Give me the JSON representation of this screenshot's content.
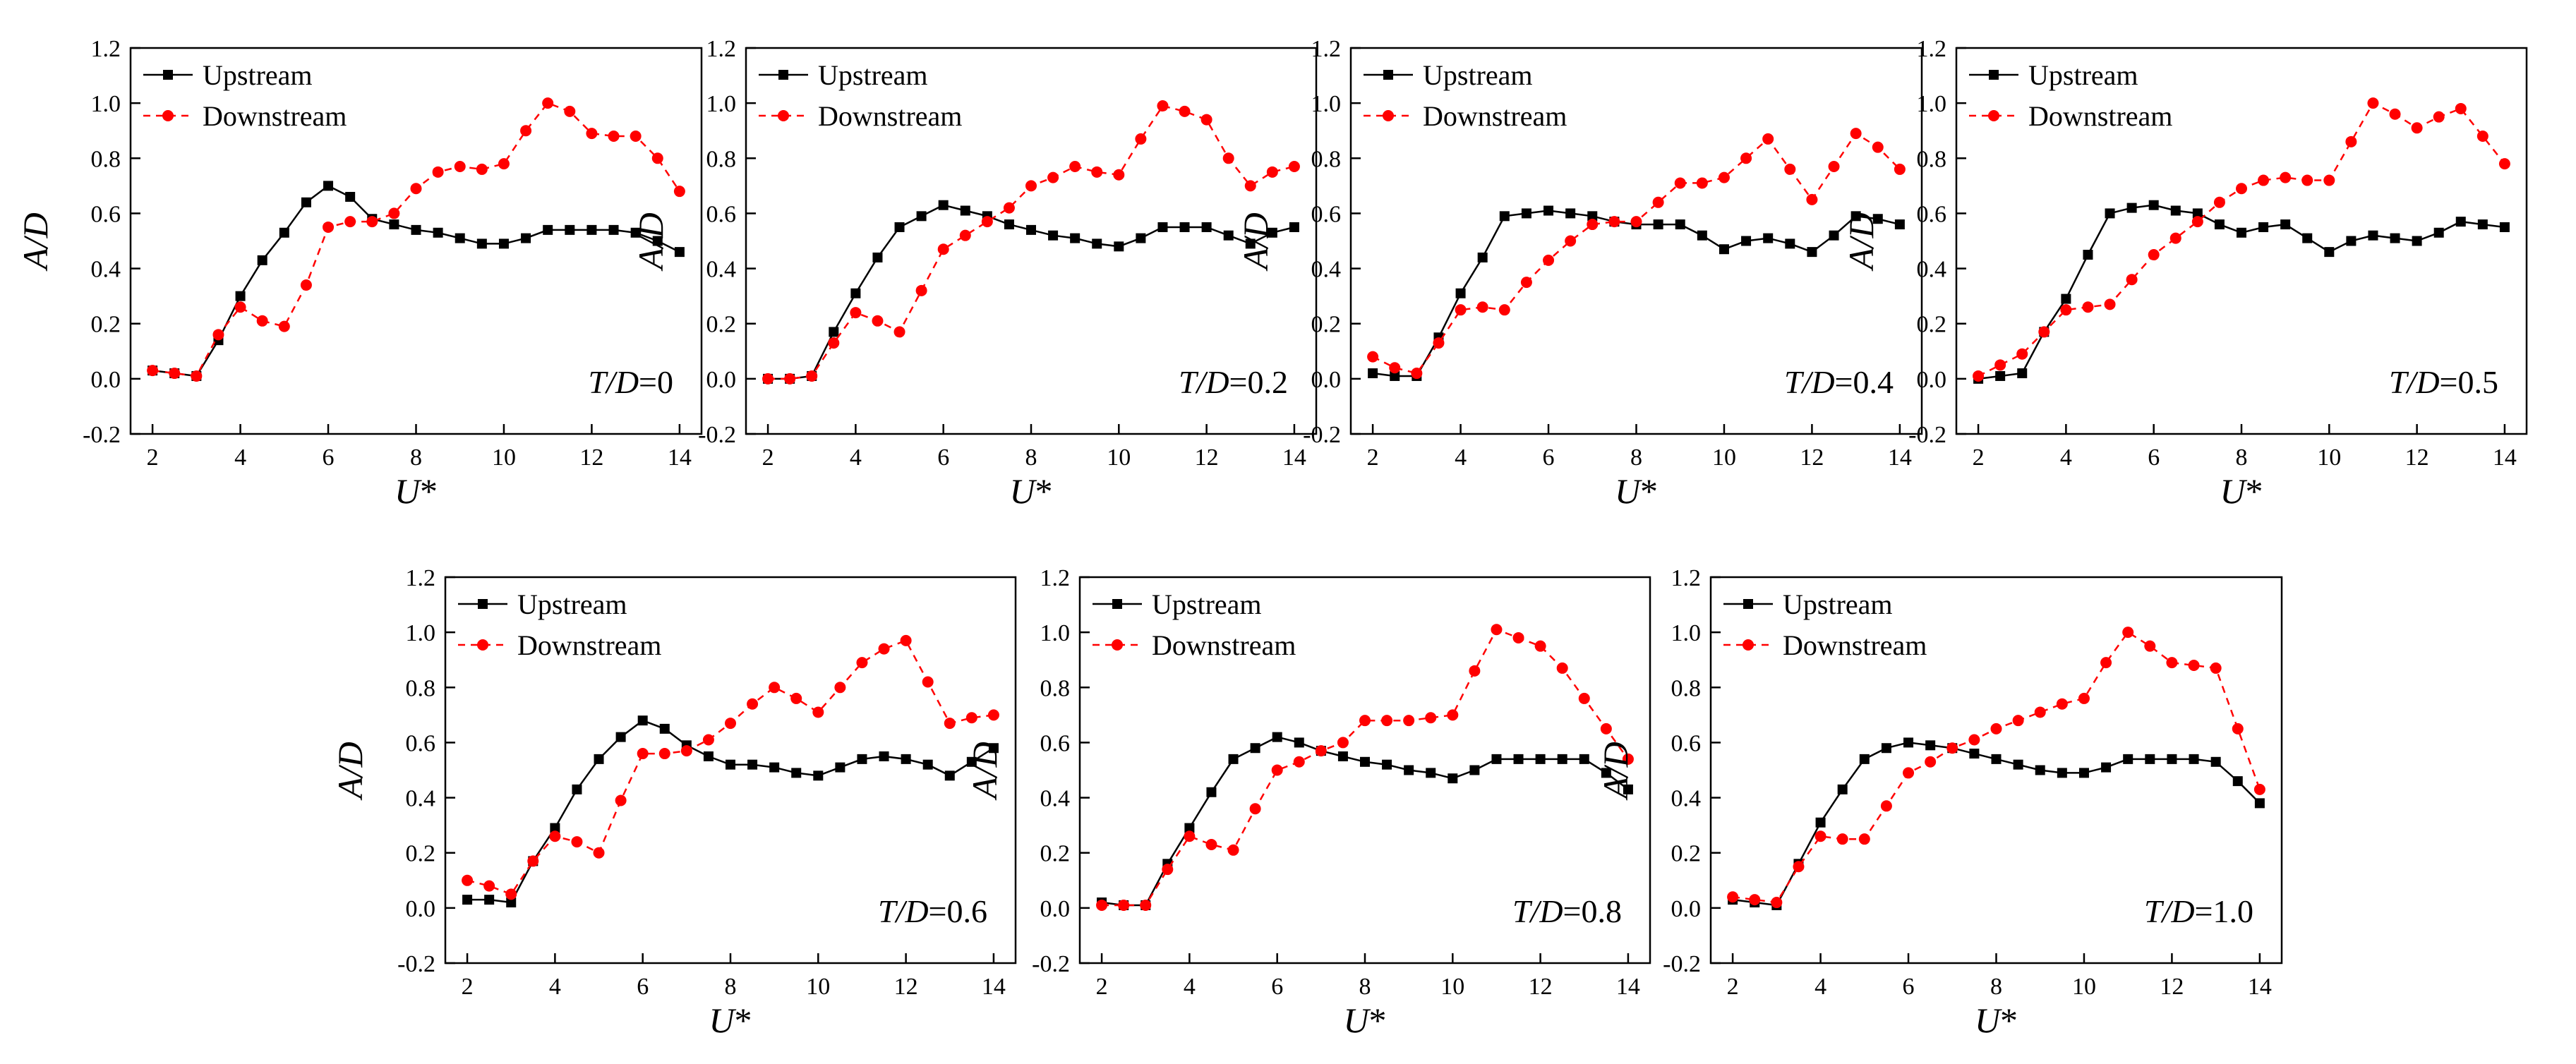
{
  "figure": {
    "axis": {
      "xlabel": "U",
      "xlabel_suffix": "*",
      "ylabel": "A/D",
      "xlim": [
        1.5,
        14.5
      ],
      "ylim": [
        -0.2,
        1.2
      ],
      "xticks": [
        2,
        4,
        6,
        8,
        10,
        12,
        14
      ],
      "yticks": [
        -0.2,
        0.0,
        0.2,
        0.4,
        0.6,
        0.8,
        1.0,
        1.2
      ],
      "xtick_labels": [
        "2",
        "4",
        "6",
        "8",
        "10",
        "12",
        "14"
      ],
      "ytick_labels": [
        "-0.2",
        "0.0",
        "0.2",
        "0.4",
        "0.6",
        "0.8",
        "1.0",
        "1.2"
      ]
    },
    "legend": {
      "upstream": "Upstream",
      "downstream": "Downstream",
      "placement": "top-left"
    },
    "colors": {
      "upstream": "#000000",
      "downstream": "#ff0000"
    }
  },
  "chart_data": [
    {
      "type": "line",
      "annotation": {
        "italic": "T/D",
        "value": "=0"
      },
      "x": [
        2,
        2.5,
        3,
        3.5,
        4,
        4.5,
        5,
        5.5,
        6,
        6.5,
        7,
        7.5,
        8,
        8.5,
        9,
        9.5,
        10,
        10.5,
        11,
        11.5,
        12,
        12.5,
        13,
        13.5,
        14
      ],
      "series": [
        {
          "name": "Upstream",
          "values": [
            0.03,
            0.02,
            0.01,
            0.14,
            0.3,
            0.43,
            0.53,
            0.64,
            0.7,
            0.66,
            0.58,
            0.56,
            0.54,
            0.53,
            0.51,
            0.49,
            0.49,
            0.51,
            0.54,
            0.54,
            0.54,
            0.54,
            0.53,
            0.5,
            0.46
          ]
        },
        {
          "name": "Downstream",
          "values": [
            0.03,
            0.02,
            0.01,
            0.16,
            0.26,
            0.21,
            0.19,
            0.34,
            0.55,
            0.57,
            0.57,
            0.6,
            0.69,
            0.75,
            0.77,
            0.76,
            0.78,
            0.9,
            1.0,
            0.97,
            0.89,
            0.88,
            0.88,
            0.8,
            0.68
          ]
        }
      ]
    },
    {
      "type": "line",
      "annotation": {
        "italic": "T/D",
        "value": "=0.2"
      },
      "x": [
        2,
        2.5,
        3,
        3.5,
        4,
        4.5,
        5,
        5.5,
        6,
        6.5,
        7,
        7.5,
        8,
        8.5,
        9,
        9.5,
        10,
        10.5,
        11,
        11.5,
        12,
        12.5,
        13,
        13.5,
        14
      ],
      "series": [
        {
          "name": "Upstream",
          "values": [
            0.0,
            0.0,
            0.01,
            0.17,
            0.31,
            0.44,
            0.55,
            0.59,
            0.63,
            0.61,
            0.59,
            0.56,
            0.54,
            0.52,
            0.51,
            0.49,
            0.48,
            0.51,
            0.55,
            0.55,
            0.55,
            0.52,
            0.49,
            0.53,
            0.55
          ]
        },
        {
          "name": "Downstream",
          "values": [
            0.0,
            0.0,
            0.01,
            0.13,
            0.24,
            0.21,
            0.17,
            0.32,
            0.47,
            0.52,
            0.57,
            0.62,
            0.7,
            0.73,
            0.77,
            0.75,
            0.74,
            0.87,
            0.99,
            0.97,
            0.94,
            0.8,
            0.7,
            0.75,
            0.77
          ]
        }
      ]
    },
    {
      "type": "line",
      "annotation": {
        "italic": "T/D",
        "value": "=0.4"
      },
      "x": [
        2,
        2.5,
        3,
        3.5,
        4,
        4.5,
        5,
        5.5,
        6,
        6.5,
        7,
        7.5,
        8,
        8.5,
        9,
        9.5,
        10,
        10.5,
        11,
        11.5,
        12,
        12.5,
        13,
        13.5,
        14
      ],
      "series": [
        {
          "name": "Upstream",
          "values": [
            0.02,
            0.01,
            0.01,
            0.15,
            0.31,
            0.44,
            0.59,
            0.6,
            0.61,
            0.6,
            0.59,
            0.57,
            0.56,
            0.56,
            0.56,
            0.52,
            0.47,
            0.5,
            0.51,
            0.49,
            0.46,
            0.52,
            0.59,
            0.58,
            0.56
          ]
        },
        {
          "name": "Downstream",
          "values": [
            0.08,
            0.04,
            0.02,
            0.13,
            0.25,
            0.26,
            0.25,
            0.35,
            0.43,
            0.5,
            0.56,
            0.57,
            0.57,
            0.64,
            0.71,
            0.71,
            0.73,
            0.8,
            0.87,
            0.76,
            0.65,
            0.77,
            0.89,
            0.84,
            0.76
          ]
        }
      ]
    },
    {
      "type": "line",
      "annotation": {
        "italic": "T/D",
        "value": "=0.5"
      },
      "x": [
        2,
        2.5,
        3,
        3.5,
        4,
        4.5,
        5,
        5.5,
        6,
        6.5,
        7,
        7.5,
        8,
        8.5,
        9,
        9.5,
        10,
        10.5,
        11,
        11.5,
        12,
        12.5,
        13,
        13.5,
        14
      ],
      "series": [
        {
          "name": "Upstream",
          "values": [
            0.0,
            0.01,
            0.02,
            0.17,
            0.29,
            0.45,
            0.6,
            0.62,
            0.63,
            0.61,
            0.6,
            0.56,
            0.53,
            0.55,
            0.56,
            0.51,
            0.46,
            0.5,
            0.52,
            0.51,
            0.5,
            0.53,
            0.57,
            0.56,
            0.55
          ]
        },
        {
          "name": "Downstream",
          "values": [
            0.01,
            0.05,
            0.09,
            0.17,
            0.25,
            0.26,
            0.27,
            0.36,
            0.45,
            0.51,
            0.57,
            0.64,
            0.69,
            0.72,
            0.73,
            0.72,
            0.72,
            0.86,
            1.0,
            0.96,
            0.91,
            0.95,
            0.98,
            0.88,
            0.78
          ]
        }
      ]
    },
    {
      "type": "line",
      "annotation": {
        "italic": "T/D",
        "value": "=0.6"
      },
      "x": [
        2,
        2.5,
        3,
        3.5,
        4,
        4.5,
        5,
        5.5,
        6,
        6.5,
        7,
        7.5,
        8,
        8.5,
        9,
        9.5,
        10,
        10.5,
        11,
        11.5,
        12,
        12.5,
        13,
        13.5,
        14
      ],
      "series": [
        {
          "name": "Upstream",
          "values": [
            0.03,
            0.03,
            0.02,
            0.17,
            0.29,
            0.43,
            0.54,
            0.62,
            0.68,
            0.65,
            0.59,
            0.55,
            0.52,
            0.52,
            0.51,
            0.49,
            0.48,
            0.51,
            0.54,
            0.55,
            0.54,
            0.52,
            0.48,
            0.53,
            0.58
          ]
        },
        {
          "name": "Downstream",
          "values": [
            0.1,
            0.08,
            0.05,
            0.17,
            0.26,
            0.24,
            0.2,
            0.39,
            0.56,
            0.56,
            0.57,
            0.61,
            0.67,
            0.74,
            0.8,
            0.76,
            0.71,
            0.8,
            0.89,
            0.94,
            0.97,
            0.82,
            0.67,
            0.69,
            0.7
          ]
        }
      ]
    },
    {
      "type": "line",
      "annotation": {
        "italic": "T/D",
        "value": "=0.8"
      },
      "x": [
        2,
        2.5,
        3,
        3.5,
        4,
        4.5,
        5,
        5.5,
        6,
        6.5,
        7,
        7.5,
        8,
        8.5,
        9,
        9.5,
        10,
        10.5,
        11,
        11.5,
        12,
        12.5,
        13,
        13.5,
        14
      ],
      "series": [
        {
          "name": "Upstream",
          "values": [
            0.02,
            0.01,
            0.01,
            0.16,
            0.29,
            0.42,
            0.54,
            0.58,
            0.62,
            0.6,
            0.57,
            0.55,
            0.53,
            0.52,
            0.5,
            0.49,
            0.47,
            0.5,
            0.54,
            0.54,
            0.54,
            0.54,
            0.54,
            0.49,
            0.43
          ]
        },
        {
          "name": "Downstream",
          "values": [
            0.01,
            0.01,
            0.01,
            0.14,
            0.26,
            0.23,
            0.21,
            0.36,
            0.5,
            0.53,
            0.57,
            0.6,
            0.68,
            0.68,
            0.68,
            0.69,
            0.7,
            0.86,
            1.01,
            0.98,
            0.95,
            0.87,
            0.76,
            0.65,
            0.54
          ]
        }
      ]
    },
    {
      "type": "line",
      "annotation": {
        "italic": "T/D",
        "value": "=1.0"
      },
      "x": [
        2,
        2.5,
        3,
        3.5,
        4,
        4.5,
        5,
        5.5,
        6,
        6.5,
        7,
        7.5,
        8,
        8.5,
        9,
        9.5,
        10,
        10.5,
        11,
        11.5,
        12,
        12.5,
        13,
        13.5,
        14
      ],
      "series": [
        {
          "name": "Upstream",
          "values": [
            0.03,
            0.02,
            0.01,
            0.16,
            0.31,
            0.43,
            0.54,
            0.58,
            0.6,
            0.59,
            0.58,
            0.56,
            0.54,
            0.52,
            0.5,
            0.49,
            0.49,
            0.51,
            0.54,
            0.54,
            0.54,
            0.54,
            0.53,
            0.46,
            0.38
          ]
        },
        {
          "name": "Downstream",
          "values": [
            0.04,
            0.03,
            0.02,
            0.15,
            0.26,
            0.25,
            0.25,
            0.37,
            0.49,
            0.53,
            0.58,
            0.61,
            0.65,
            0.68,
            0.71,
            0.74,
            0.76,
            0.89,
            1.0,
            0.95,
            0.89,
            0.88,
            0.87,
            0.65,
            0.43
          ]
        }
      ]
    }
  ]
}
